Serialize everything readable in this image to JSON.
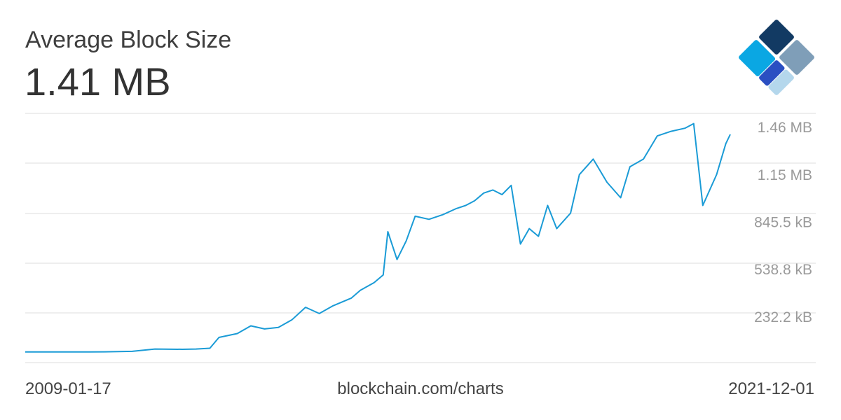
{
  "header": {
    "title": "Average Block Size",
    "current_value": "1.41 MB"
  },
  "footer": {
    "start_date": "2009-01-17",
    "source": "blockchain.com/charts",
    "end_date": "2021-12-01"
  },
  "colors": {
    "line": "#1a9bd6",
    "grid": "#dddddd",
    "tick_text": "#9a9a9a",
    "logo_dark": "#123a63",
    "logo_gray": "#7f9eb8",
    "logo_blue": "#2a4fc2",
    "logo_cyan": "#0aa7e3",
    "logo_light": "#b4d7ec"
  },
  "logo": {
    "icon": "blockchain-diamond-logo-icon"
  },
  "chart_data": {
    "type": "line",
    "title": "Average Block Size",
    "xlabel": "",
    "ylabel": "",
    "x_range": [
      "2009-01-17",
      "2021-12-01"
    ],
    "ylim_kb": [
      0,
      1700
    ],
    "grid": true,
    "legend": "none",
    "y_ticks": [
      {
        "value_kb": 232.2,
        "label": "232.2 kB"
      },
      {
        "value_kb": 538.8,
        "label": "538.8 kB"
      },
      {
        "value_kb": 845.5,
        "label": "845.5 kB"
      },
      {
        "value_kb": 1152,
        "label": "1.15 MB"
      },
      {
        "value_kb": 1460,
        "label": "1.46 MB"
      }
    ],
    "series": [
      {
        "values_kb": [
          [
            "2009-01-17",
            1
          ],
          [
            "2010-01-01",
            1
          ],
          [
            "2010-07-01",
            2
          ],
          [
            "2011-01-01",
            5
          ],
          [
            "2011-06-01",
            20
          ],
          [
            "2011-12-01",
            18
          ],
          [
            "2012-03-01",
            20
          ],
          [
            "2012-06-01",
            25
          ],
          [
            "2012-08-01",
            95
          ],
          [
            "2012-12-01",
            120
          ],
          [
            "2013-03-01",
            170
          ],
          [
            "2013-06-01",
            150
          ],
          [
            "2013-09-01",
            160
          ],
          [
            "2013-12-01",
            210
          ],
          [
            "2014-03-01",
            290
          ],
          [
            "2014-06-01",
            250
          ],
          [
            "2014-09-01",
            300
          ],
          [
            "2015-01-01",
            350
          ],
          [
            "2015-03-01",
            400
          ],
          [
            "2015-06-01",
            450
          ],
          [
            "2015-08-01",
            500
          ],
          [
            "2015-09-01",
            780
          ],
          [
            "2015-11-01",
            600
          ],
          [
            "2016-01-01",
            720
          ],
          [
            "2016-03-01",
            880
          ],
          [
            "2016-06-01",
            860
          ],
          [
            "2016-09-01",
            890
          ],
          [
            "2016-12-01",
            930
          ],
          [
            "2017-02-01",
            950
          ],
          [
            "2017-04-01",
            980
          ],
          [
            "2017-06-01",
            1030
          ],
          [
            "2017-08-01",
            1050
          ],
          [
            "2017-10-01",
            1020
          ],
          [
            "2017-12-01",
            1080
          ],
          [
            "2018-02-01",
            700
          ],
          [
            "2018-04-01",
            800
          ],
          [
            "2018-06-01",
            750
          ],
          [
            "2018-08-01",
            950
          ],
          [
            "2018-10-01",
            800
          ],
          [
            "2019-01-01",
            900
          ],
          [
            "2019-03-01",
            1150
          ],
          [
            "2019-06-01",
            1250
          ],
          [
            "2019-09-01",
            1100
          ],
          [
            "2019-12-01",
            1000
          ],
          [
            "2020-02-01",
            1200
          ],
          [
            "2020-05-01",
            1250
          ],
          [
            "2020-08-01",
            1400
          ],
          [
            "2020-11-01",
            1430
          ],
          [
            "2021-02-01",
            1450
          ],
          [
            "2021-04-01",
            1480
          ],
          [
            "2021-06-01",
            950
          ],
          [
            "2021-09-01",
            1150
          ],
          [
            "2021-11-01",
            1350
          ],
          [
            "2021-12-01",
            1410
          ]
        ]
      }
    ]
  }
}
